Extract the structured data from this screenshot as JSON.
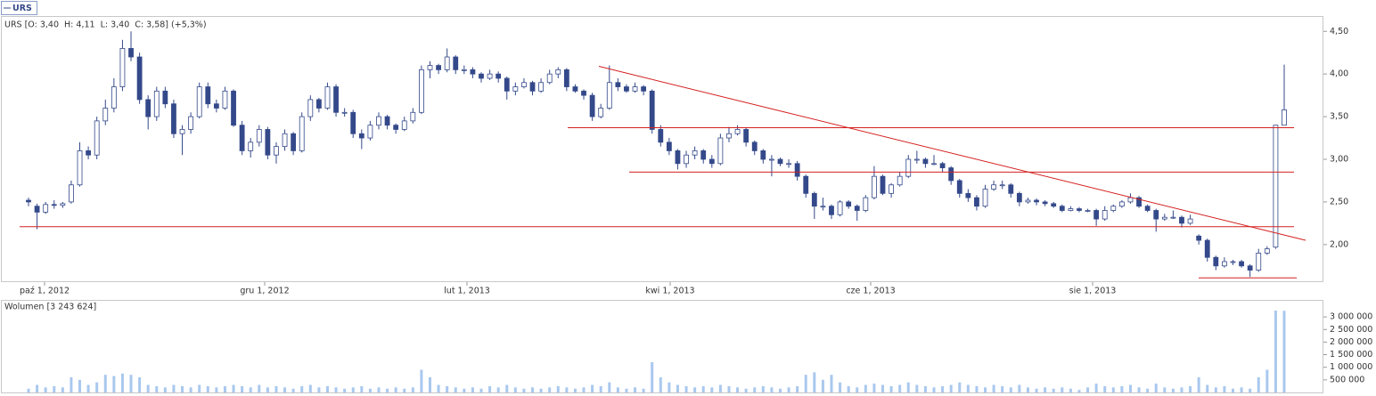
{
  "chart_data": [
    {
      "type": "candlestick",
      "legend": "URS",
      "title": "URS [O: 3,40  H: 4,11  L: 3,40  C: 3,58] (+5,3%)",
      "color": "#34498a",
      "ohlc": [
        [
          2.52,
          2.55,
          2.45,
          2.5
        ],
        [
          2.45,
          2.48,
          2.18,
          2.38
        ],
        [
          2.38,
          2.5,
          2.36,
          2.47
        ],
        [
          2.47,
          2.52,
          2.42,
          2.46
        ],
        [
          2.46,
          2.5,
          2.43,
          2.48
        ],
        [
          2.5,
          2.75,
          2.48,
          2.7
        ],
        [
          2.7,
          3.2,
          2.68,
          3.1
        ],
        [
          3.1,
          3.15,
          3.0,
          3.05
        ],
        [
          3.05,
          3.5,
          3.0,
          3.45
        ],
        [
          3.45,
          3.7,
          3.4,
          3.6
        ],
        [
          3.6,
          3.95,
          3.55,
          3.85
        ],
        [
          3.85,
          4.4,
          3.8,
          4.3
        ],
        [
          4.3,
          4.5,
          4.15,
          4.2
        ],
        [
          4.2,
          4.25,
          3.65,
          3.7
        ],
        [
          3.7,
          3.75,
          3.35,
          3.5
        ],
        [
          3.5,
          3.85,
          3.45,
          3.8
        ],
        [
          3.8,
          3.85,
          3.6,
          3.65
        ],
        [
          3.65,
          3.7,
          3.25,
          3.3
        ],
        [
          3.3,
          3.4,
          3.05,
          3.35
        ],
        [
          3.35,
          3.55,
          3.3,
          3.5
        ],
        [
          3.5,
          3.9,
          3.48,
          3.85
        ],
        [
          3.85,
          3.9,
          3.6,
          3.65
        ],
        [
          3.65,
          3.7,
          3.55,
          3.6
        ],
        [
          3.6,
          3.85,
          3.58,
          3.8
        ],
        [
          3.8,
          3.82,
          3.38,
          3.4
        ],
        [
          3.4,
          3.45,
          3.05,
          3.1
        ],
        [
          3.1,
          3.25,
          3.02,
          3.2
        ],
        [
          3.2,
          3.4,
          3.15,
          3.35
        ],
        [
          3.35,
          3.38,
          3.0,
          3.05
        ],
        [
          3.05,
          3.2,
          2.95,
          3.15
        ],
        [
          3.15,
          3.35,
          3.1,
          3.3
        ],
        [
          3.3,
          3.32,
          3.05,
          3.1
        ],
        [
          3.1,
          3.55,
          3.08,
          3.5
        ],
        [
          3.5,
          3.75,
          3.45,
          3.7
        ],
        [
          3.7,
          3.72,
          3.55,
          3.6
        ],
        [
          3.6,
          3.9,
          3.58,
          3.85
        ],
        [
          3.85,
          3.88,
          3.5,
          3.55
        ],
        [
          3.55,
          3.6,
          3.5,
          3.55
        ],
        [
          3.55,
          3.58,
          3.25,
          3.3
        ],
        [
          3.3,
          3.35,
          3.12,
          3.25
        ],
        [
          3.25,
          3.45,
          3.22,
          3.4
        ],
        [
          3.4,
          3.55,
          3.35,
          3.5
        ],
        [
          3.5,
          3.52,
          3.35,
          3.4
        ],
        [
          3.4,
          3.42,
          3.3,
          3.35
        ],
        [
          3.35,
          3.5,
          3.33,
          3.45
        ],
        [
          3.45,
          3.6,
          3.42,
          3.55
        ],
        [
          3.55,
          4.1,
          3.53,
          4.05
        ],
        [
          4.05,
          4.15,
          3.95,
          4.1
        ],
        [
          4.1,
          4.12,
          4.0,
          4.05
        ],
        [
          4.05,
          4.3,
          4.02,
          4.2
        ],
        [
          4.2,
          4.22,
          4.0,
          4.05
        ],
        [
          4.05,
          4.1,
          4.0,
          4.05
        ],
        [
          4.05,
          4.08,
          3.95,
          4.0
        ],
        [
          4.0,
          4.02,
          3.9,
          3.95
        ],
        [
          3.95,
          4.05,
          3.93,
          4.0
        ],
        [
          4.0,
          4.03,
          3.9,
          3.95
        ],
        [
          3.95,
          3.97,
          3.7,
          3.8
        ],
        [
          3.8,
          3.9,
          3.75,
          3.85
        ],
        [
          3.85,
          3.95,
          3.83,
          3.9
        ],
        [
          3.9,
          3.92,
          3.75,
          3.8
        ],
        [
          3.8,
          3.95,
          3.78,
          3.9
        ],
        [
          3.9,
          4.05,
          3.88,
          4.0
        ],
        [
          4.0,
          4.08,
          3.95,
          4.05
        ],
        [
          4.05,
          4.07,
          3.8,
          3.85
        ],
        [
          3.85,
          3.88,
          3.78,
          3.8
        ],
        [
          3.8,
          3.82,
          3.7,
          3.75
        ],
        [
          3.75,
          3.78,
          3.45,
          3.5
        ],
        [
          3.5,
          3.65,
          3.48,
          3.6
        ],
        [
          3.6,
          4.1,
          3.58,
          3.9
        ],
        [
          3.9,
          3.95,
          3.8,
          3.85
        ],
        [
          3.85,
          3.88,
          3.78,
          3.8
        ],
        [
          3.8,
          3.9,
          3.78,
          3.85
        ],
        [
          3.85,
          3.87,
          3.75,
          3.8
        ],
        [
          3.8,
          3.82,
          3.3,
          3.35
        ],
        [
          3.35,
          3.4,
          3.15,
          3.2
        ],
        [
          3.2,
          3.25,
          3.05,
          3.1
        ],
        [
          3.1,
          3.12,
          2.88,
          2.95
        ],
        [
          2.95,
          3.1,
          2.9,
          3.05
        ],
        [
          3.05,
          3.15,
          3.0,
          3.1
        ],
        [
          3.1,
          3.12,
          2.95,
          3.0
        ],
        [
          3.0,
          3.05,
          2.9,
          2.95
        ],
        [
          2.95,
          3.3,
          2.93,
          3.25
        ],
        [
          3.25,
          3.38,
          3.2,
          3.3
        ],
        [
          3.3,
          3.4,
          3.28,
          3.35
        ],
        [
          3.35,
          3.37,
          3.15,
          3.2
        ],
        [
          3.2,
          3.22,
          3.05,
          3.1
        ],
        [
          3.1,
          3.12,
          2.95,
          3.0
        ],
        [
          3.0,
          3.05,
          2.8,
          3.0
        ],
        [
          3.0,
          3.02,
          2.92,
          2.95
        ],
        [
          2.95,
          3.0,
          2.9,
          2.95
        ],
        [
          2.95,
          2.98,
          2.75,
          2.8
        ],
        [
          2.8,
          2.82,
          2.55,
          2.6
        ],
        [
          2.6,
          2.62,
          2.3,
          2.45
        ],
        [
          2.45,
          2.55,
          2.4,
          2.45
        ],
        [
          2.45,
          2.47,
          2.3,
          2.35
        ],
        [
          2.35,
          2.52,
          2.33,
          2.5
        ],
        [
          2.5,
          2.52,
          2.42,
          2.45
        ],
        [
          2.45,
          2.47,
          2.28,
          2.4
        ],
        [
          2.4,
          2.58,
          2.38,
          2.55
        ],
        [
          2.55,
          2.92,
          2.53,
          2.8
        ],
        [
          2.8,
          2.82,
          2.58,
          2.6
        ],
        [
          2.6,
          2.72,
          2.55,
          2.7
        ],
        [
          2.7,
          2.85,
          2.68,
          2.8
        ],
        [
          2.8,
          3.05,
          2.78,
          3.0
        ],
        [
          3.0,
          3.1,
          2.95,
          3.0
        ],
        [
          3.0,
          3.02,
          2.9,
          2.95
        ],
        [
          2.95,
          3.05,
          2.93,
          2.95
        ],
        [
          2.95,
          2.97,
          2.85,
          2.9
        ],
        [
          2.9,
          2.92,
          2.7,
          2.75
        ],
        [
          2.75,
          2.77,
          2.55,
          2.6
        ],
        [
          2.6,
          2.65,
          2.5,
          2.55
        ],
        [
          2.55,
          2.58,
          2.4,
          2.45
        ],
        [
          2.45,
          2.7,
          2.43,
          2.65
        ],
        [
          2.65,
          2.75,
          2.63,
          2.7
        ],
        [
          2.7,
          2.75,
          2.65,
          2.7
        ],
        [
          2.7,
          2.72,
          2.55,
          2.6
        ],
        [
          2.6,
          2.62,
          2.45,
          2.5
        ],
        [
          2.5,
          2.55,
          2.48,
          2.52
        ],
        [
          2.52,
          2.54,
          2.46,
          2.5
        ],
        [
          2.5,
          2.52,
          2.45,
          2.48
        ],
        [
          2.48,
          2.5,
          2.43,
          2.45
        ],
        [
          2.45,
          2.47,
          2.38,
          2.4
        ],
        [
          2.4,
          2.45,
          2.39,
          2.42
        ],
        [
          2.42,
          2.44,
          2.38,
          2.4
        ],
        [
          2.4,
          2.42,
          2.38,
          2.4
        ],
        [
          2.4,
          2.42,
          2.22,
          2.3
        ],
        [
          2.3,
          2.45,
          2.28,
          2.4
        ],
        [
          2.4,
          2.47,
          2.38,
          2.45
        ],
        [
          2.45,
          2.52,
          2.43,
          2.5
        ],
        [
          2.5,
          2.6,
          2.48,
          2.55
        ],
        [
          2.55,
          2.57,
          2.43,
          2.45
        ],
        [
          2.45,
          2.47,
          2.38,
          2.4
        ],
        [
          2.4,
          2.42,
          2.15,
          2.3
        ],
        [
          2.3,
          2.36,
          2.28,
          2.32
        ],
        [
          2.32,
          2.4,
          2.3,
          2.32
        ],
        [
          2.32,
          2.34,
          2.2,
          2.25
        ],
        [
          2.25,
          2.35,
          2.23,
          2.3
        ],
        [
          2.1,
          2.12,
          2.0,
          2.05
        ],
        [
          2.05,
          2.07,
          1.8,
          1.85
        ],
        [
          1.85,
          1.87,
          1.7,
          1.75
        ],
        [
          1.75,
          1.85,
          1.73,
          1.8
        ],
        [
          1.8,
          1.82,
          1.76,
          1.8
        ],
        [
          1.8,
          1.82,
          1.73,
          1.75
        ],
        [
          1.75,
          1.77,
          1.62,
          1.7
        ],
        [
          1.7,
          1.95,
          1.68,
          1.9
        ],
        [
          1.9,
          1.98,
          1.88,
          1.95
        ],
        [
          1.97,
          3.4,
          1.95,
          3.4
        ],
        [
          3.4,
          4.11,
          3.4,
          3.58
        ]
      ],
      "ylim": [
        1.56,
        4.68
      ],
      "yticks": [
        {
          "value": 2,
          "label": "2,00"
        },
        {
          "value": 2.5,
          "label": "2,50"
        },
        {
          "value": 3,
          "label": "3,00"
        },
        {
          "value": 3.5,
          "label": "3,50"
        },
        {
          "value": 4,
          "label": "4,00"
        },
        {
          "value": 4.5,
          "label": "4,50"
        }
      ],
      "xticks": [
        "paź 1, 2012",
        "gru 1, 2012",
        "lut 1, 2013",
        "kwi 1, 2013",
        "cze 1, 2013",
        "sie 1, 2013"
      ],
      "lines": {
        "color": "#d42020",
        "levels": [
          [
            4.09,
            2.05
          ],
          [
            3.37,
            3.37
          ],
          [
            2.85,
            2.85
          ],
          [
            2.21,
            2.21
          ],
          [
            1.61,
            1.61
          ]
        ]
      }
    },
    {
      "type": "bar",
      "title": "Wolumen [3 243 624]",
      "color": "#a9c8ee",
      "values": [
        150000,
        300000,
        200000,
        250000,
        200000,
        600000,
        500000,
        300000,
        400000,
        700000,
        650000,
        750000,
        700000,
        600000,
        300000,
        250000,
        200000,
        300000,
        250000,
        200000,
        300000,
        250000,
        200000,
        250000,
        300000,
        250000,
        200000,
        300000,
        200000,
        250000,
        200000,
        150000,
        250000,
        300000,
        200000,
        250000,
        200000,
        150000,
        200000,
        250000,
        150000,
        200000,
        150000,
        200000,
        150000,
        200000,
        900000,
        600000,
        300000,
        250000,
        200000,
        150000,
        200000,
        150000,
        250000,
        200000,
        300000,
        200000,
        150000,
        200000,
        150000,
        200000,
        250000,
        200000,
        150000,
        200000,
        300000,
        250000,
        400000,
        200000,
        150000,
        200000,
        150000,
        1200000,
        600000,
        400000,
        300000,
        250000,
        200000,
        250000,
        200000,
        300000,
        250000,
        200000,
        150000,
        200000,
        250000,
        200000,
        150000,
        200000,
        250000,
        700000,
        800000,
        500000,
        700000,
        400000,
        250000,
        200000,
        300000,
        350000,
        300000,
        250000,
        300000,
        400000,
        300000,
        250000,
        200000,
        250000,
        300000,
        400000,
        300000,
        250000,
        200000,
        300000,
        250000,
        200000,
        300000,
        200000,
        150000,
        200000,
        150000,
        200000,
        150000,
        100000,
        200000,
        350000,
        250000,
        200000,
        250000,
        300000,
        200000,
        150000,
        350000,
        200000,
        150000,
        200000,
        250000,
        600000,
        300000,
        200000,
        250000,
        150000,
        200000,
        150000,
        600000,
        900000,
        3250000,
        3243624
      ],
      "ylim": [
        0,
        3640000
      ],
      "yticks": [
        {
          "value": 500000,
          "label": "500 000"
        },
        {
          "value": 1000000,
          "label": "1 000 000"
        },
        {
          "value": 1500000,
          "label": "1 500 000"
        },
        {
          "value": 2000000,
          "label": "2 000 000"
        },
        {
          "value": 2500000,
          "label": "2 500 000"
        },
        {
          "value": 3000000,
          "label": "3 000 000"
        }
      ]
    }
  ]
}
